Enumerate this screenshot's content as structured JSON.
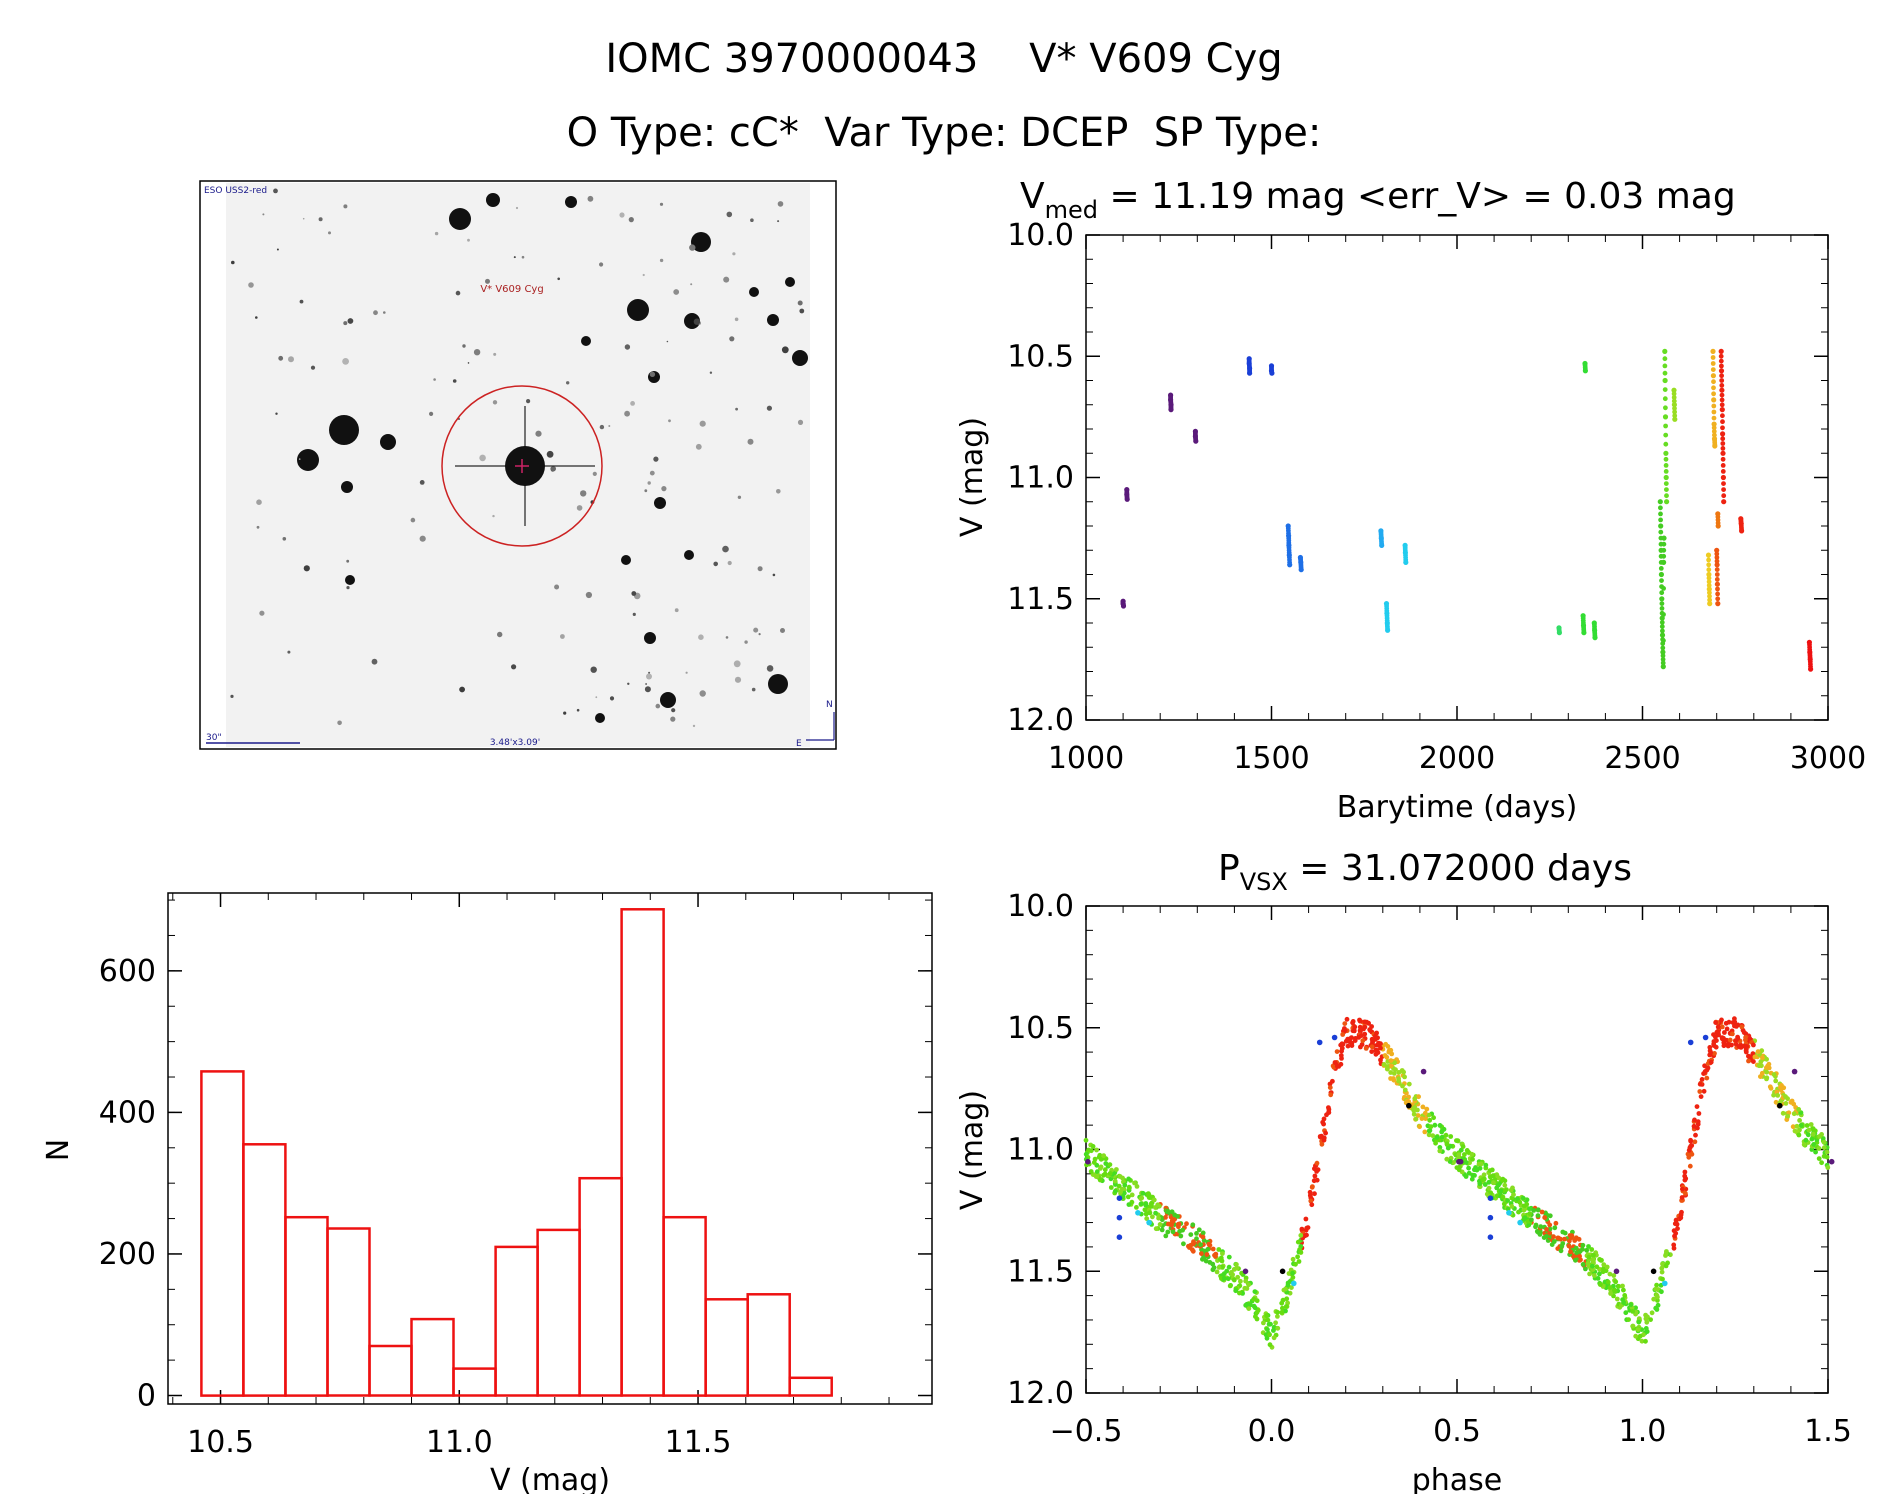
{
  "header": {
    "title": "IOMC 3970000043    V* V609 Cyg",
    "subtitle": "O Type: cC*  Var Type: DCEP  SP Type:"
  },
  "finder": {
    "survey_label": "ESO USS2-red",
    "target_label": "V* V609 Cyg",
    "scale_label": "30\"",
    "size_label": "3.48'x3.09'",
    "north_label": "N",
    "east_label": "E"
  },
  "chart_data": [
    {
      "id": "light_curve",
      "type": "scatter",
      "title_parts": {
        "prefix": "V",
        "sub": "med",
        "suffix": " = 11.19 mag <err_V> = 0.03 mag"
      },
      "xlabel": "Barytime (days)",
      "ylabel": "V (mag)",
      "xlim": [
        1000,
        3000
      ],
      "ylim": [
        12.0,
        10.0
      ],
      "xticks": [
        1000,
        1500,
        2000,
        2500,
        3000
      ],
      "yticks": [
        10.0,
        10.5,
        11.0,
        11.5,
        12.0
      ],
      "xtick_labels": [
        "1000",
        "1500",
        "2000",
        "2500",
        "3000"
      ],
      "ytick_labels": [
        "10.0",
        "10.5",
        "11.0",
        "11.5",
        "12.0"
      ],
      "groups": [
        {
          "color": "#5a1a7a",
          "x": [
            1100,
            1100,
            1101
          ],
          "y": [
            11.51,
            11.52,
            11.53
          ]
        },
        {
          "color": "#5a1a7a",
          "x": [
            1110,
            1110,
            1111
          ],
          "y": [
            11.05,
            11.07,
            11.09
          ]
        },
        {
          "color": "#5a1a7a",
          "x": [
            1228,
            1228,
            1229,
            1229
          ],
          "y": [
            10.66,
            10.68,
            10.7,
            10.72
          ]
        },
        {
          "color": "#5a1a7a",
          "x": [
            1295,
            1295,
            1296
          ],
          "y": [
            10.81,
            10.83,
            10.85
          ]
        },
        {
          "color": "#1a3fd6",
          "x": [
            1440,
            1440,
            1441,
            1441
          ],
          "y": [
            10.51,
            10.53,
            10.55,
            10.57
          ]
        },
        {
          "color": "#1a3fd6",
          "x": [
            1500,
            1500,
            1501
          ],
          "y": [
            10.54,
            10.56,
            10.57
          ]
        },
        {
          "color": "#1e6fe6",
          "x": [
            1545,
            1546,
            1547,
            1548,
            1549
          ],
          "y": [
            11.2,
            11.24,
            11.28,
            11.32,
            11.36
          ]
        },
        {
          "color": "#1e6fe6",
          "x": [
            1578,
            1579,
            1580
          ],
          "y": [
            11.33,
            11.35,
            11.38
          ]
        },
        {
          "color": "#22aaf0",
          "x": [
            1795,
            1796,
            1797
          ],
          "y": [
            11.22,
            11.25,
            11.28
          ]
        },
        {
          "color": "#22ccee",
          "x": [
            1810,
            1811,
            1812,
            1813
          ],
          "y": [
            11.52,
            11.56,
            11.6,
            11.63
          ]
        },
        {
          "color": "#22ccee",
          "x": [
            1860,
            1861,
            1862
          ],
          "y": [
            11.28,
            11.31,
            11.35
          ]
        },
        {
          "color": "#33dd66",
          "x": [
            2275,
            2276
          ],
          "y": [
            11.62,
            11.64
          ]
        },
        {
          "color": "#33dd33",
          "x": [
            2340,
            2341,
            2342
          ],
          "y": [
            11.57,
            11.61,
            11.64
          ]
        },
        {
          "color": "#33dd33",
          "x": [
            2345,
            2346
          ],
          "y": [
            10.53,
            10.56
          ]
        },
        {
          "color": "#33dd33",
          "x": [
            2370,
            2371,
            2372
          ],
          "y": [
            11.6,
            11.63,
            11.66
          ]
        },
        {
          "color": "#44cc22",
          "x": [
            2548,
            2549,
            2550,
            2551,
            2552,
            2553,
            2554,
            2555,
            2556,
            2557,
            2558
          ],
          "y": [
            11.1,
            11.2,
            11.3,
            11.4,
            11.5,
            11.58,
            11.65,
            11.72,
            11.78,
            11.35,
            11.25
          ]
        },
        {
          "color": "#66dd22",
          "x": [
            2560,
            2561,
            2562,
            2563,
            2564,
            2565
          ],
          "y": [
            10.48,
            10.6,
            10.75,
            10.9,
            11.0,
            11.1
          ]
        },
        {
          "color": "#99dd22",
          "x": [
            2585,
            2586,
            2587
          ],
          "y": [
            10.64,
            10.7,
            10.76
          ]
        },
        {
          "color": "#eecc22",
          "x": [
            2678,
            2679,
            2680,
            2681
          ],
          "y": [
            11.32,
            11.4,
            11.46,
            11.52
          ]
        },
        {
          "color": "#f0b020",
          "x": [
            2690,
            2691,
            2692,
            2693,
            2694,
            2695
          ],
          "y": [
            10.48,
            10.58,
            10.68,
            10.78,
            10.84,
            10.87
          ]
        },
        {
          "color": "#ee5511",
          "x": [
            2700,
            2701,
            2702,
            2703
          ],
          "y": [
            11.3,
            11.36,
            11.44,
            11.52
          ]
        },
        {
          "color": "#ee7711",
          "x": [
            2703,
            2704
          ],
          "y": [
            11.15,
            11.2
          ]
        },
        {
          "color": "#ee2211",
          "x": [
            2712,
            2713,
            2714,
            2715,
            2716,
            2717,
            2718,
            2719
          ],
          "y": [
            10.48,
            10.56,
            10.64,
            10.72,
            10.82,
            10.9,
            11.0,
            11.1
          ]
        },
        {
          "color": "#ee2211",
          "x": [
            2765,
            2766,
            2767
          ],
          "y": [
            11.17,
            11.19,
            11.22
          ]
        },
        {
          "color": "#ee1111",
          "x": [
            2950,
            2951,
            2952,
            2953
          ],
          "y": [
            11.68,
            11.72,
            11.75,
            11.79
          ]
        }
      ]
    },
    {
      "id": "histogram",
      "type": "bar",
      "xlabel": "V (mag)",
      "ylabel": "N",
      "xlim": [
        10.39,
        11.99
      ],
      "ylim": [
        -12,
        710
      ],
      "xticks": [
        10.5,
        11.0,
        11.5
      ],
      "yticks": [
        0,
        200,
        400,
        600
      ],
      "xtick_labels": [
        "10.5",
        "11.0",
        "11.5"
      ],
      "ytick_labels": [
        "0",
        "200",
        "400",
        "600"
      ],
      "bin_edges": [
        10.46,
        10.548,
        10.636,
        10.724,
        10.812,
        10.9,
        10.988,
        11.076,
        11.164,
        11.252,
        11.34,
        11.428,
        11.516,
        11.604,
        11.692,
        11.78
      ],
      "values": [
        458,
        355,
        252,
        236,
        70,
        108,
        38,
        210,
        234,
        307,
        687,
        252,
        136,
        143,
        25
      ],
      "color": "#ee1111"
    },
    {
      "id": "phase_curve",
      "type": "scatter",
      "title_parts": {
        "prefix": "P",
        "sub": "VSX",
        "suffix": " = 31.072000 days"
      },
      "xlabel": "phase",
      "ylabel": "V (mag)",
      "xlim": [
        -0.5,
        1.5
      ],
      "ylim": [
        12.0,
        10.0
      ],
      "xticks": [
        -0.5,
        0.0,
        0.5,
        1.0,
        1.5
      ],
      "yticks": [
        10.0,
        10.5,
        11.0,
        11.5,
        12.0
      ],
      "xtick_labels": [
        "−0.5",
        "0.0",
        "0.5",
        "1.0",
        "1.5"
      ],
      "ytick_labels": [
        "10.0",
        "10.5",
        "11.0",
        "11.5",
        "12.0"
      ],
      "curve": {
        "phase": [
          0.0,
          0.04,
          0.08,
          0.12,
          0.16,
          0.2,
          0.25,
          0.3,
          0.35,
          0.4,
          0.45,
          0.5,
          0.6,
          0.7,
          0.8,
          0.9,
          0.95,
          1.0
        ],
        "mag": [
          11.76,
          11.6,
          11.4,
          11.1,
          10.75,
          10.52,
          10.52,
          10.6,
          10.72,
          10.85,
          10.95,
          11.02,
          11.15,
          11.28,
          11.38,
          11.52,
          11.62,
          11.76
        ]
      },
      "groups": [
        {
          "color": "#5a1a7a",
          "x": [
            -0.495,
            0.505,
            0.41,
            1.41,
            0.51,
            1.51,
            -0.07,
            0.93
          ],
          "y": [
            11.05,
            11.05,
            10.68,
            10.68,
            11.05,
            11.05,
            11.5,
            11.5
          ]
        },
        {
          "color": "#1a3fd6",
          "x": [
            -0.41,
            -0.41,
            -0.41,
            0.59,
            0.59,
            0.59,
            0.13,
            1.13,
            0.17,
            1.17
          ],
          "y": [
            11.2,
            11.28,
            11.36,
            11.2,
            11.28,
            11.36,
            10.56,
            10.56,
            10.54,
            10.54
          ]
        },
        {
          "color": "#22ccee",
          "x": [
            -0.36,
            0.64,
            0.06,
            1.06,
            -0.33,
            0.67
          ],
          "y": [
            11.26,
            11.26,
            11.55,
            11.55,
            11.3,
            11.3
          ]
        },
        {
          "color": "#000000",
          "x": [
            0.03,
            1.03,
            0.37,
            1.37
          ],
          "y": [
            11.5,
            11.5,
            10.82,
            10.82
          ]
        }
      ]
    }
  ]
}
